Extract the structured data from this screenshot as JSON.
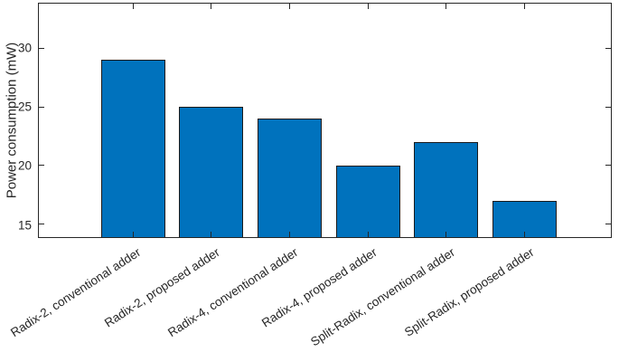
{
  "chart_data": {
    "type": "bar",
    "title": "",
    "xlabel": "",
    "ylabel": "Power consumption (mW)",
    "categories": [
      "Radix-2, conventional adder",
      "Radix-2, proposed adder",
      "Radix-4, conventional adder",
      "Radix-4, proposed adder",
      "Split-Radix, conventional adder",
      "Split-Radix, proposed adder"
    ],
    "values": [
      29,
      25,
      24,
      20,
      22,
      17
    ],
    "x_positions": [
      1,
      2,
      3,
      4,
      5,
      6
    ],
    "xlim": [
      -0.2,
      7.1
    ],
    "ylim": [
      13.9,
      33.8
    ],
    "yticks": [
      15,
      20,
      25,
      30
    ],
    "xtick_label_rotation_deg": 33,
    "bar_width_ratio": 0.82,
    "bar_color": "#0072BD",
    "bar_edge_color": "#1a1a1a",
    "axis_color": "#262626",
    "grid": false,
    "legend": false,
    "box": true,
    "tick_direction": "in"
  }
}
